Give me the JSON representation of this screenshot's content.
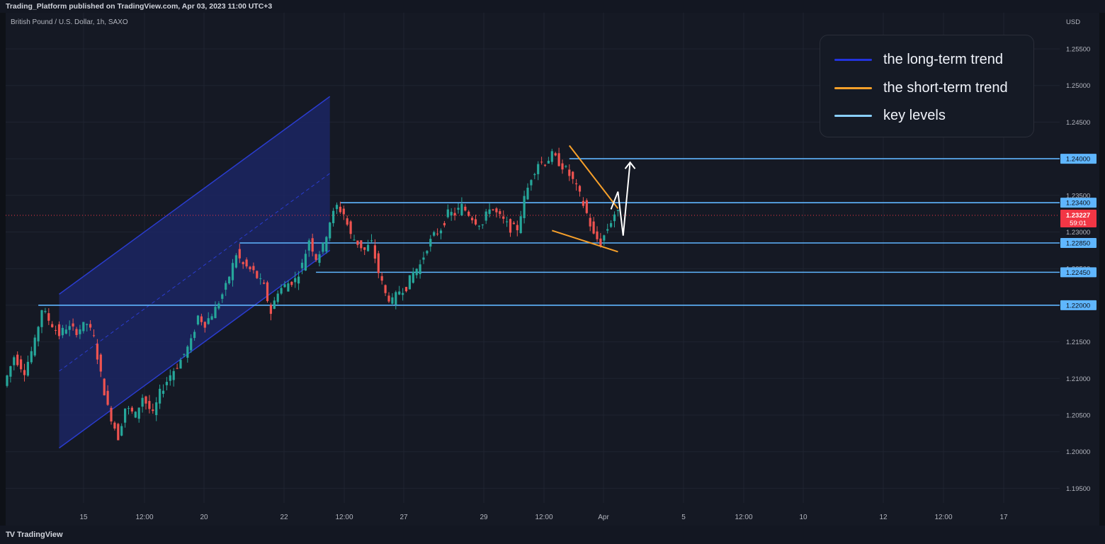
{
  "header": {
    "published": "Trading_Platform published on TradingView.com, Apr 03, 2023 11:00 UTC+3",
    "symbol": "British Pound / U.S. Dollar, 1h, SAXO",
    "currency": "USD"
  },
  "footer": {
    "brand": "TradingView",
    "logo_icon": "tradingview-logo-icon"
  },
  "legend": [
    {
      "label": "the long-term trend",
      "color": "#2233dd"
    },
    {
      "label": "the short-term trend",
      "color": "#f7a02a"
    },
    {
      "label": "key levels",
      "color": "#8ad0ff"
    }
  ],
  "colors": {
    "up": "#26a69a",
    "down": "#ef5350",
    "channel_fill": "#1b2566",
    "channel_edge": "#2a3ccf",
    "short_trend": "#f7a02a",
    "key_level": "#5fb6ff",
    "projection": "#ffffff",
    "current_price": "#f23645"
  },
  "chart_data": {
    "type": "candlestick",
    "title": "British Pound / U.S. Dollar, 1h, SAXO",
    "xlabel": "",
    "ylabel": "USD",
    "ylim": [
      1.1925,
      1.2575
    ],
    "y_ticks": [
      "1.25500",
      "1.25000",
      "1.24500",
      "1.24000",
      "1.23500",
      "1.23000",
      "1.22500",
      "1.22000",
      "1.21500",
      "1.21000",
      "1.20500",
      "1.20000",
      "1.19500"
    ],
    "x_ticks": [
      "15",
      "12:00",
      "20",
      "22",
      "12:00",
      "27",
      "29",
      "12:00",
      "Apr",
      "5",
      "12:00",
      "10",
      "12",
      "12:00",
      "17"
    ],
    "current_price": {
      "value": 1.23227,
      "label": "1.23227",
      "countdown": "59:01"
    },
    "key_levels": [
      {
        "value": 1.24,
        "label": "1.24000"
      },
      {
        "value": 1.234,
        "label": "1.23400"
      },
      {
        "value": 1.2285,
        "label": "1.22850"
      },
      {
        "value": 1.2245,
        "label": "1.22450"
      },
      {
        "value": 1.22,
        "label": "1.22000"
      }
    ],
    "price_path": [
      [
        0,
        1.209
      ],
      [
        3,
        1.213
      ],
      [
        6,
        1.211
      ],
      [
        9,
        1.215
      ],
      [
        11,
        1.2195
      ],
      [
        13,
        1.218
      ],
      [
        16,
        1.216
      ],
      [
        18,
        1.217
      ],
      [
        21,
        1.2165
      ],
      [
        24,
        1.2175
      ],
      [
        26,
        1.2155
      ],
      [
        28,
        1.2105
      ],
      [
        30,
        1.206
      ],
      [
        33,
        1.202
      ],
      [
        35,
        1.206
      ],
      [
        38,
        1.205
      ],
      [
        40,
        1.2075
      ],
      [
        43,
        1.205
      ],
      [
        45,
        1.208
      ],
      [
        48,
        1.2105
      ],
      [
        51,
        1.2125
      ],
      [
        54,
        1.215
      ],
      [
        56,
        1.2185
      ],
      [
        58,
        1.2175
      ],
      [
        61,
        1.2195
      ],
      [
        64,
        1.2225
      ],
      [
        67,
        1.227
      ],
      [
        69,
        1.2255
      ],
      [
        72,
        1.2245
      ],
      [
        75,
        1.2225
      ],
      [
        77,
        1.219
      ],
      [
        79,
        1.222
      ],
      [
        82,
        1.223
      ],
      [
        84,
        1.2235
      ],
      [
        86,
        1.2255
      ],
      [
        88,
        1.229
      ],
      [
        90,
        1.2265
      ],
      [
        92,
        1.228
      ],
      [
        94,
        1.2315
      ],
      [
        96,
        1.2335
      ],
      [
        98,
        1.2325
      ],
      [
        100,
        1.2295
      ],
      [
        102,
        1.2285
      ],
      [
        104,
        1.2275
      ],
      [
        106,
        1.2285
      ],
      [
        108,
        1.2245
      ],
      [
        110,
        1.2215
      ],
      [
        112,
        1.2205
      ],
      [
        114,
        1.222
      ],
      [
        116,
        1.2225
      ],
      [
        118,
        1.2245
      ],
      [
        120,
        1.2255
      ],
      [
        122,
        1.228
      ],
      [
        124,
        1.2295
      ],
      [
        126,
        1.2305
      ],
      [
        128,
        1.2325
      ],
      [
        130,
        1.2325
      ],
      [
        132,
        1.2335
      ],
      [
        134,
        1.2325
      ],
      [
        136,
        1.2315
      ],
      [
        138,
        1.231
      ],
      [
        140,
        1.2335
      ],
      [
        142,
        1.2325
      ],
      [
        144,
        1.2315
      ],
      [
        146,
        1.2305
      ],
      [
        148,
        1.2305
      ],
      [
        150,
        1.2345
      ],
      [
        152,
        1.2375
      ],
      [
        154,
        1.2395
      ],
      [
        156,
        1.2395
      ],
      [
        158,
        1.2405
      ],
      [
        160,
        1.2395
      ],
      [
        162,
        1.2385
      ],
      [
        164,
        1.237
      ],
      [
        166,
        1.235
      ],
      [
        168,
        1.2325
      ],
      [
        170,
        1.2295
      ],
      [
        172,
        1.2285
      ],
      [
        174,
        1.2305
      ],
      [
        176,
        1.2325
      ]
    ],
    "long_term_channel": {
      "lower": [
        [
          15,
          1.2005
        ],
        [
          93,
          1.2275
        ]
      ],
      "upper": [
        [
          15,
          1.2215
        ],
        [
          93,
          1.2485
        ]
      ],
      "midline": [
        [
          15,
          1.211
        ],
        [
          93,
          1.238
        ]
      ]
    },
    "short_term_trend": {
      "resistance": [
        [
          162,
          1.2418
        ],
        [
          176,
          1.2332
        ]
      ],
      "support": [
        [
          157,
          1.2302
        ],
        [
          176,
          1.2273
        ]
      ]
    },
    "projection": [
      [
        174,
        1.2331
      ],
      [
        176,
        1.2355
      ],
      [
        177.5,
        1.2295
      ],
      [
        179.5,
        1.2395
      ]
    ]
  }
}
